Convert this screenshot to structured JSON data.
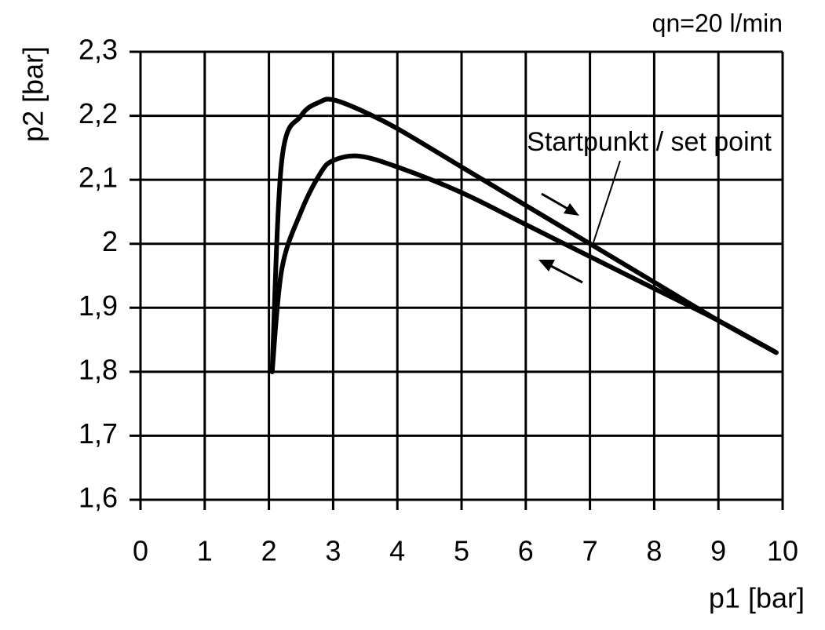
{
  "chart_data": {
    "type": "line",
    "title": "qn=20 l/min",
    "annotation": "Startpunkt / set point",
    "x_label": "p1 [bar]",
    "y_label": "p2 [bar]",
    "x": [
      2.05,
      2.2,
      2.5,
      2.8,
      3,
      3.4,
      4,
      5,
      6,
      7,
      8,
      9,
      9.9
    ],
    "series": [
      {
        "color": "#000000",
        "values": [
          1.8,
          2.13,
          2.2,
          2.222,
          2.225,
          2.21,
          2.18,
          2.12,
          2.06,
          2.0,
          1.94,
          1.88,
          1.83
        ]
      },
      {
        "color": "#000000",
        "values": [
          1.8,
          1.96,
          2.05,
          2.11,
          2.13,
          2.137,
          2.12,
          2.08,
          2.03,
          1.98,
          1.93,
          1.88,
          1.83
        ]
      }
    ],
    "xlim": [
      0,
      10
    ],
    "xticks": [
      0,
      1,
      2,
      3,
      4,
      5,
      6,
      7,
      8,
      9,
      10
    ],
    "ylim": [
      1.6,
      2.3
    ],
    "yticks": [
      {
        "value": 1.6,
        "label": "1,6"
      },
      {
        "value": 1.7,
        "label": "1,7"
      },
      {
        "value": 1.8,
        "label": "1,8"
      },
      {
        "value": 1.9,
        "label": "1,9"
      },
      2,
      {
        "value": 2.1,
        "label": "2,1"
      },
      {
        "value": 2.2,
        "label": "2,2"
      },
      {
        "value": 2.3,
        "label": "2,3"
      }
    ],
    "grid": true
  }
}
